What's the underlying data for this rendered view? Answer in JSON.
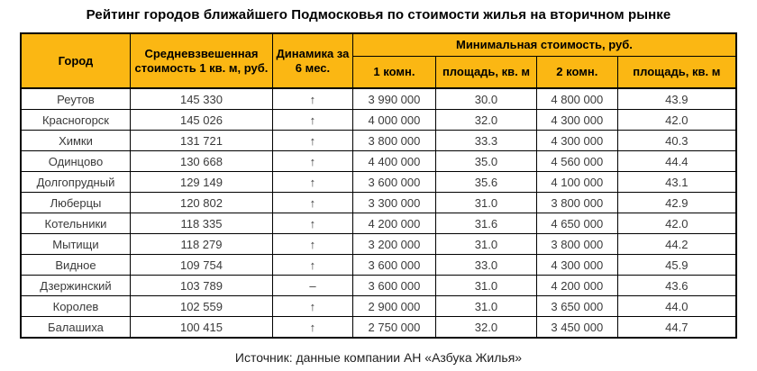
{
  "page": {
    "title": "Рейтинг городов ближайшего Подмосковья по стоимости жилья на вторичном рынке",
    "source": "Источник: данные компании АН «Азбука Жилья»"
  },
  "colors": {
    "header_bg": "#FBB713",
    "border": "#000000",
    "data_text": "#3A3A3A"
  },
  "header": {
    "city": "Город",
    "avg_price": "Средневзвешенная стоимость 1 кв. м, руб.",
    "dynamics": "Динамика за 6 мес.",
    "min_price_group": "Минимальная стоимость, руб.",
    "one_room": "1 комн.",
    "one_room_area": "площадь, кв. м",
    "two_room": "2 комн.",
    "two_room_area": "площадь, кв. м"
  },
  "chart_data": {
    "type": "table",
    "title": "Рейтинг городов ближайшего Подмосковья по стоимости жилья на вторичном рынке",
    "columns": [
      "Город",
      "Средневзвешенная стоимость 1 кв. м, руб.",
      "Динамика за 6 мес.",
      "Минимальная стоимость, руб. — 1 комн.",
      "Минимальная стоимость, руб. — площадь, кв. м (1 комн.)",
      "Минимальная стоимость, руб. — 2 комн.",
      "Минимальная стоимость, руб. — площадь, кв. м (2 комн.)"
    ],
    "rows": [
      [
        "Реутов",
        "145 330",
        "↑",
        "3 990 000",
        "30.0",
        "4 800 000",
        "43.9"
      ],
      [
        "Красногорск",
        "145 026",
        "↑",
        "4 000 000",
        "32.0",
        "4 300 000",
        "42.0"
      ],
      [
        "Химки",
        "131 721",
        "↑",
        "3 800 000",
        "33.3",
        "4 300 000",
        "40.3"
      ],
      [
        "Одинцово",
        "130 668",
        "↑",
        "4 400 000",
        "35.0",
        "4 560 000",
        "44.4"
      ],
      [
        "Долгопрудный",
        "129 149",
        "↑",
        "3 600 000",
        "35.6",
        "4 100 000",
        "43.1"
      ],
      [
        "Люберцы",
        "120 802",
        "↑",
        "3 300 000",
        "31.0",
        "3 800 000",
        "42.9"
      ],
      [
        "Котельники",
        "118 335",
        "↑",
        "4 200 000",
        "31.6",
        "4 650 000",
        "42.0"
      ],
      [
        "Мытищи",
        "118 279",
        "↑",
        "3 200 000",
        "31.0",
        "3 800 000",
        "44.2"
      ],
      [
        "Видное",
        "109 754",
        "↑",
        "3 600 000",
        "33.0",
        "4 300 000",
        "45.9"
      ],
      [
        "Дзержинский",
        "103 789",
        "–",
        "3 600 000",
        "31.0",
        "4 200 000",
        "43.6"
      ],
      [
        "Королев",
        "102 559",
        "↑",
        "2 900 000",
        "31.0",
        "3 650 000",
        "44.0"
      ],
      [
        "Балашиха",
        "100 415",
        "↑",
        "2 750 000",
        "32.0",
        "3 450 000",
        "44.7"
      ]
    ],
    "source": "Источник: данные компании АН «Азбука Жилья»",
    "layout": {
      "header_rows": 2,
      "group_header_span": [
        "1 комн.",
        "площадь, кв. м",
        "2 комн.",
        "площадь, кв. м"
      ]
    }
  }
}
